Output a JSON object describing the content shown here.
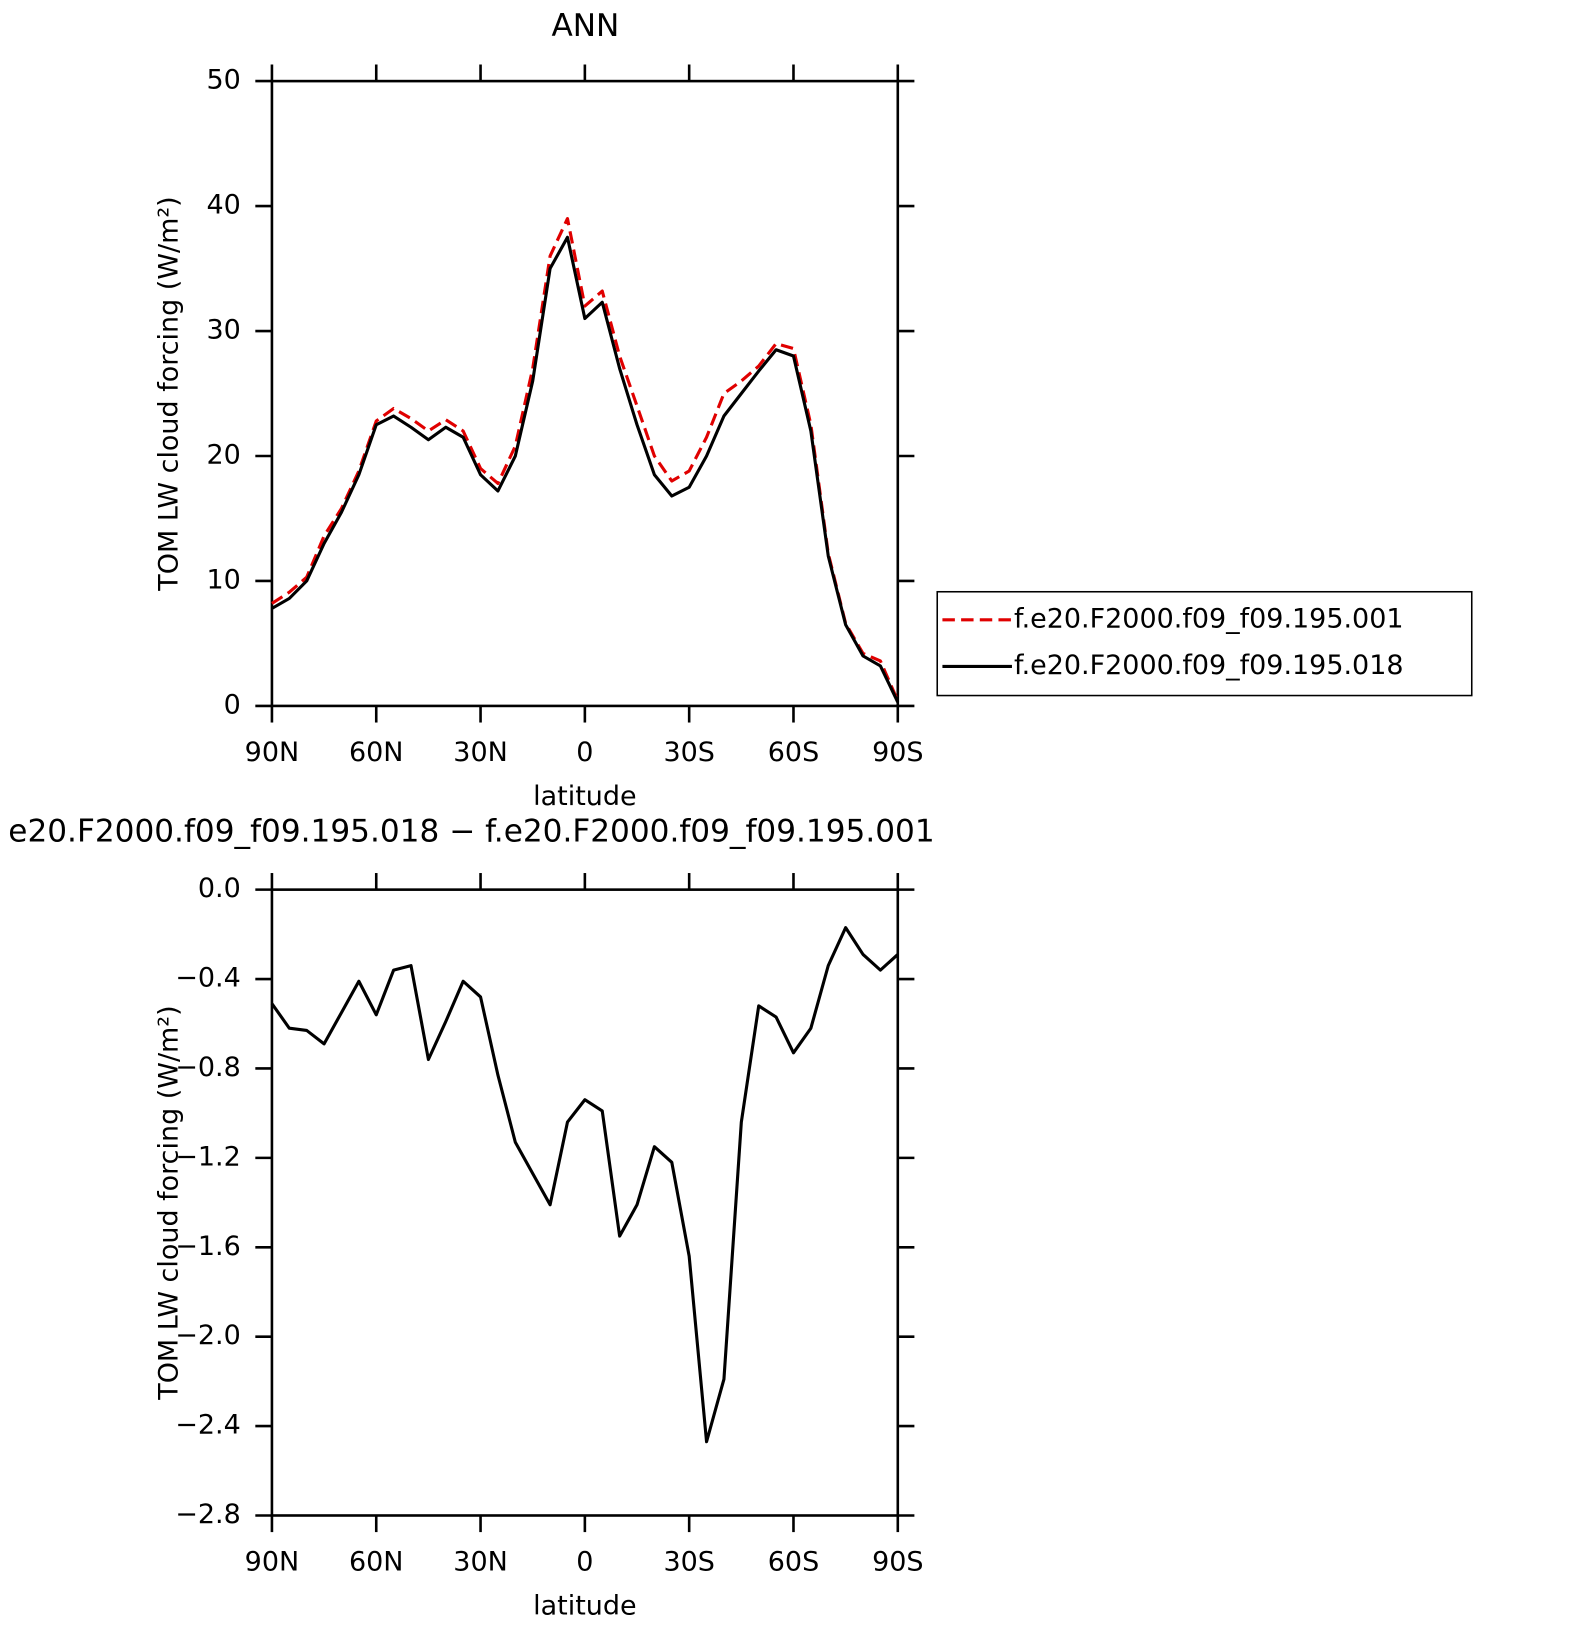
{
  "chart_data": [
    {
      "type": "line",
      "title": "ANN",
      "ylabel": "TOM LW cloud forcing (W/m²)",
      "xlabel": "latitude",
      "x": [
        90,
        85,
        80,
        75,
        70,
        65,
        60,
        55,
        50,
        45,
        40,
        35,
        30,
        25,
        20,
        15,
        10,
        5,
        0,
        -5,
        -10,
        -15,
        -20,
        -25,
        -30,
        -35,
        -40,
        -45,
        -50,
        -55,
        -60,
        -65,
        -70,
        -75,
        -80,
        -85,
        -90
      ],
      "xlim": [
        90,
        -90
      ],
      "xticks": [
        {
          "value": 90,
          "label": "90N"
        },
        {
          "value": 60,
          "label": "60N"
        },
        {
          "value": 30,
          "label": "30N"
        },
        0,
        {
          "value": -30,
          "label": "30S"
        },
        {
          "value": -60,
          "label": "60S"
        },
        {
          "value": -90,
          "label": "90S"
        }
      ],
      "ylim": [
        0,
        50
      ],
      "yticks": [
        0,
        10,
        20,
        30,
        40,
        50
      ],
      "legend": "right",
      "series": [
        {
          "name": "f.e20.F2000.f09_f09.195.001",
          "color": "#e00000",
          "line_style": "dashed",
          "values": [
            8.2,
            9.1,
            10.3,
            13.6,
            15.8,
            18.8,
            22.8,
            23.8,
            23.0,
            22.0,
            22.9,
            22.0,
            19.0,
            17.8,
            20.8,
            27,
            36,
            39,
            32,
            33.2,
            28,
            24,
            20,
            18,
            18.8,
            21.5,
            25,
            26,
            27.2,
            29,
            28.6,
            22.5,
            12.2,
            6.6,
            4.2,
            3.6,
            0.4
          ]
        },
        {
          "name": "f.e20.F2000.f09_f09.195.018",
          "color": "#000000",
          "line_style": "solid",
          "values": [
            7.8,
            8.6,
            10,
            13,
            15.5,
            18.5,
            22.5,
            23.2,
            22.3,
            21.3,
            22.3,
            21.5,
            18.5,
            17.2,
            20,
            26,
            35,
            37.5,
            31,
            32.3,
            27,
            22.5,
            18.5,
            16.8,
            17.5,
            20,
            23.2,
            25,
            26.8,
            28.5,
            28,
            22,
            12,
            6.5,
            4,
            3.2,
            0.3
          ]
        }
      ]
    },
    {
      "type": "line",
      "title": "e20.F2000.f09_f09.195.018 − f.e20.F2000.f09_f09.195.001",
      "ylabel": "TOM LW cloud forcing (W/m²)",
      "xlabel": "latitude",
      "x": [
        90,
        85,
        80,
        75,
        70,
        65,
        60,
        55,
        50,
        45,
        40,
        35,
        30,
        25,
        20,
        15,
        10,
        5,
        0,
        -5,
        -10,
        -15,
        -20,
        -25,
        -30,
        -35,
        -40,
        -45,
        -50,
        -55,
        -60,
        -65,
        -70,
        -75,
        -80,
        -85,
        -90
      ],
      "xlim": [
        90,
        -90
      ],
      "xticks": [
        {
          "value": 90,
          "label": "90N"
        },
        {
          "value": 60,
          "label": "60N"
        },
        {
          "value": 30,
          "label": "30N"
        },
        0,
        {
          "value": -30,
          "label": "30S"
        },
        {
          "value": -60,
          "label": "60S"
        },
        {
          "value": -90,
          "label": "90S"
        }
      ],
      "ylim": [
        -2.8,
        0
      ],
      "yticks": [
        {
          "value": 0,
          "label": "0.0"
        },
        {
          "value": -0.4,
          "label": "−0.4"
        },
        {
          "value": -0.8,
          "label": "−0.8"
        },
        {
          "value": -1.2,
          "label": "−1.2"
        },
        {
          "value": -1.6,
          "label": "−1.6"
        },
        {
          "value": -2.0,
          "label": "−2.0"
        },
        {
          "value": -2.4,
          "label": "−2.4"
        },
        {
          "value": -2.8,
          "label": "−2.8"
        }
      ],
      "series": [
        {
          "color": "#000000",
          "line_style": "solid",
          "values": [
            -0.51,
            -0.62,
            -0.63,
            -0.69,
            -0.55,
            -0.41,
            -0.56,
            -0.36,
            -0.34,
            -0.76,
            -0.59,
            -0.41,
            -0.48,
            -0.83,
            -1.13,
            -1.27,
            -1.41,
            -1.04,
            -0.94,
            -0.99,
            -1.55,
            -1.41,
            -1.15,
            -1.22,
            -1.64,
            -2.47,
            -2.19,
            -1.04,
            -0.52,
            -0.57,
            -0.73,
            -0.62,
            -0.34,
            -0.17,
            -0.29,
            -0.36,
            -0.29
          ]
        }
      ]
    }
  ]
}
